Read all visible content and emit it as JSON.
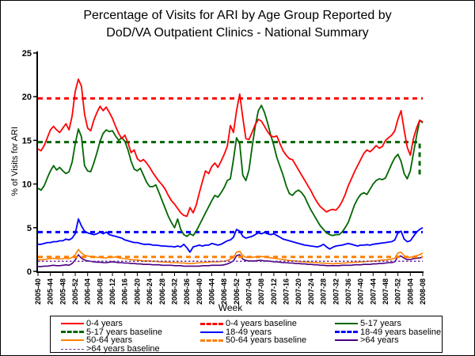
{
  "title": {
    "line1": "Percentage of Visits for ARI by Age Group Reported by",
    "line2": "DoD/VA Outpatient Clinics - National Summary"
  },
  "chart_data": {
    "type": "line",
    "title": "Percentage of Visits for ARI by Age Group Reported by DoD/VA Outpatient Clinics - National Summary",
    "xlabel": "Week",
    "ylabel": "% of Visits for ARI",
    "ylim": [
      0,
      25
    ],
    "yticks": [
      0,
      5,
      10,
      15,
      20,
      25
    ],
    "grid": false,
    "legend_position": "bottom",
    "weeks_total": 125,
    "x_tick_interval_weeks": 4,
    "x_tick_labels": [
      "2005-40",
      "2005-44",
      "2005-48",
      "2005-52",
      "2006-04",
      "2006-08",
      "2006-12",
      "2006-16",
      "2006-20",
      "2006-24",
      "2006-28",
      "2006-32",
      "2006-36",
      "2006-40",
      "2006-44",
      "2006-48",
      "2006-52",
      "2007-04",
      "2007-08",
      "2007-12",
      "2007-16",
      "2007-20",
      "2007-24",
      "2007-28",
      "2007-32",
      "2007-36",
      "2007-40",
      "2007-44",
      "2007-48",
      "2007-52",
      "2008-04",
      "2008-08"
    ],
    "series": [
      {
        "name": "0-4 years",
        "color": "#FF0000",
        "width": 1.8,
        "values": [
          14.0,
          13.8,
          14.4,
          15.3,
          16.2,
          16.6,
          16.2,
          15.9,
          16.4,
          16.9,
          16.2,
          17.8,
          20.6,
          22.0,
          21.2,
          18.0,
          16.4,
          16.1,
          17.3,
          18.2,
          18.9,
          18.4,
          18.8,
          18.2,
          17.5,
          16.6,
          15.8,
          15.2,
          15.6,
          14.7,
          13.6,
          13.9,
          12.9,
          12.6,
          12.8,
          12.4,
          11.9,
          11.3,
          10.8,
          10.3,
          9.9,
          9.4,
          8.7,
          8.1,
          7.7,
          7.2,
          6.7,
          6.4,
          6.3,
          7.3,
          6.7,
          7.6,
          9.0,
          10.3,
          11.5,
          11.2,
          12.0,
          12.4,
          11.9,
          12.6,
          13.4,
          14.3,
          16.7,
          15.9,
          18.4,
          20.3,
          17.6,
          15.2,
          15.1,
          15.9,
          16.8,
          17.4,
          17.2,
          16.6,
          16.0,
          15.5,
          15.4,
          15.5,
          14.6,
          13.8,
          13.3,
          12.9,
          12.8,
          12.2,
          11.6,
          11.0,
          10.4,
          9.8,
          9.2,
          8.5,
          7.9,
          7.4,
          7.1,
          6.8,
          7.0,
          7.1,
          7.0,
          7.4,
          8.0,
          8.8,
          9.8,
          10.6,
          11.4,
          12.1,
          12.8,
          13.5,
          13.9,
          13.7,
          14.0,
          14.4,
          14.1,
          14.3,
          15.0,
          15.3,
          15.6,
          16.1,
          17.4,
          18.4,
          16.2,
          14.2,
          13.3,
          15.2,
          16.4,
          17.3,
          17.1
        ]
      },
      {
        "name": "5-17 years",
        "color": "#006600",
        "width": 1.8,
        "values": [
          9.5,
          9.3,
          9.8,
          10.7,
          11.5,
          12.1,
          11.6,
          11.9,
          11.5,
          11.2,
          11.4,
          12.5,
          14.6,
          16.3,
          15.4,
          12.1,
          11.5,
          11.4,
          12.4,
          13.6,
          14.9,
          15.8,
          16.2,
          16.0,
          16.1,
          15.5,
          15.0,
          15.3,
          14.9,
          13.9,
          12.6,
          11.7,
          11.5,
          11.8,
          11.0,
          10.2,
          9.7,
          9.7,
          9.9,
          9.0,
          8.1,
          7.2,
          6.3,
          5.6,
          5.0,
          6.0,
          4.8,
          4.2,
          4.0,
          4.3,
          4.1,
          4.6,
          5.3,
          6.0,
          6.7,
          7.4,
          8.1,
          8.7,
          8.5,
          9.0,
          9.6,
          10.4,
          10.6,
          12.8,
          15.3,
          14.6,
          11.0,
          10.4,
          11.6,
          14.2,
          16.6,
          18.4,
          19.0,
          18.2,
          17.0,
          15.6,
          14.4,
          13.0,
          12.0,
          11.0,
          9.8,
          8.9,
          8.7,
          9.1,
          9.3,
          9.0,
          8.5,
          7.7,
          7.0,
          6.4,
          5.8,
          5.2,
          4.8,
          4.4,
          4.2,
          4.1,
          4.2,
          4.2,
          4.5,
          5.0,
          5.6,
          6.6,
          7.6,
          8.3,
          8.8,
          9.0,
          8.8,
          9.4,
          10.0,
          10.4,
          10.6,
          10.5,
          10.7,
          11.5,
          12.3,
          13.0,
          13.4,
          12.6,
          11.2,
          10.6,
          11.5,
          13.5,
          15.5,
          17.3,
          17.0
        ]
      },
      {
        "name": "18-49 years",
        "color": "#0000FF",
        "width": 1.8,
        "values": [
          3.1,
          3.1,
          3.2,
          3.3,
          3.3,
          3.4,
          3.4,
          3.5,
          3.5,
          3.7,
          3.6,
          3.8,
          4.3,
          6.0,
          5.2,
          4.6,
          4.4,
          4.3,
          4.2,
          4.3,
          4.5,
          4.3,
          4.5,
          4.2,
          4.1,
          4.0,
          3.9,
          3.8,
          3.6,
          3.5,
          3.4,
          3.3,
          3.3,
          3.2,
          3.1,
          3.1,
          3.1,
          3.0,
          3.0,
          2.95,
          2.9,
          2.9,
          2.85,
          2.85,
          2.8,
          2.9,
          2.8,
          3.1,
          2.7,
          2.2,
          2.8,
          2.9,
          3.0,
          2.9,
          3.0,
          3.0,
          3.2,
          3.1,
          3.0,
          3.1,
          3.3,
          3.5,
          3.6,
          3.9,
          4.8,
          4.6,
          4.0,
          3.8,
          3.9,
          4.0,
          4.2,
          4.4,
          4.3,
          4.45,
          4.3,
          4.2,
          4.3,
          4.1,
          3.9,
          3.7,
          3.6,
          3.5,
          3.4,
          3.3,
          3.2,
          3.1,
          3.0,
          2.95,
          2.9,
          2.85,
          2.8,
          2.9,
          3.1,
          2.8,
          2.55,
          2.75,
          2.9,
          2.95,
          3.0,
          3.1,
          3.2,
          3.1,
          3.0,
          2.9,
          3.0,
          3.0,
          3.05,
          3.0,
          3.1,
          3.15,
          3.2,
          3.25,
          3.3,
          3.35,
          3.4,
          3.6,
          4.4,
          4.6,
          3.7,
          3.4,
          3.5,
          4.0,
          4.5,
          4.8,
          5.0
        ]
      },
      {
        "name": "50-64 years",
        "color": "#FF8000",
        "width": 1.6,
        "values": [
          1.35,
          1.3,
          1.35,
          1.4,
          1.45,
          1.5,
          1.45,
          1.4,
          1.45,
          1.5,
          1.45,
          1.6,
          1.9,
          2.5,
          2.1,
          1.85,
          1.75,
          1.7,
          1.65,
          1.6,
          1.6,
          1.55,
          1.55,
          1.6,
          1.6,
          1.65,
          1.55,
          1.5,
          1.45,
          1.4,
          1.35,
          1.3,
          1.3,
          1.25,
          1.2,
          1.2,
          1.2,
          1.15,
          1.15,
          1.1,
          1.1,
          1.05,
          1.05,
          1.0,
          1.0,
          1.0,
          0.95,
          0.95,
          0.9,
          0.9,
          0.9,
          0.95,
          1.0,
          1.0,
          1.05,
          1.05,
          1.1,
          1.1,
          1.1,
          1.15,
          1.15,
          1.25,
          1.4,
          1.6,
          2.2,
          2.3,
          1.8,
          1.6,
          1.6,
          1.6,
          1.65,
          1.7,
          1.7,
          1.65,
          1.6,
          1.55,
          1.5,
          1.45,
          1.4,
          1.35,
          1.3,
          1.25,
          1.2,
          1.2,
          1.15,
          1.1,
          1.1,
          1.05,
          1.05,
          1.0,
          1.0,
          0.95,
          0.95,
          0.9,
          0.9,
          0.85,
          0.9,
          0.9,
          0.95,
          0.95,
          1.0,
          1.0,
          1.05,
          1.05,
          1.1,
          1.1,
          1.15,
          1.15,
          1.2,
          1.2,
          1.25,
          1.3,
          1.3,
          1.35,
          1.4,
          1.5,
          2.1,
          2.2,
          1.8,
          1.6,
          1.6,
          1.7,
          1.8,
          1.9,
          2.1
        ]
      },
      {
        "name": ">64 years",
        "color": "#4B0082",
        "width": 1.6,
        "values": [
          0.55,
          0.55,
          0.6,
          0.6,
          0.65,
          0.7,
          0.65,
          0.65,
          0.7,
          0.75,
          0.7,
          0.9,
          1.3,
          1.9,
          1.5,
          1.3,
          1.2,
          1.15,
          1.1,
          1.05,
          1.05,
          1.0,
          1.0,
          1.05,
          1.1,
          1.05,
          1.0,
          1.0,
          0.95,
          0.95,
          0.9,
          0.9,
          0.85,
          0.85,
          0.8,
          0.8,
          0.8,
          0.75,
          0.75,
          0.75,
          0.7,
          0.7,
          0.7,
          0.7,
          0.65,
          0.65,
          0.65,
          0.6,
          0.6,
          0.6,
          0.6,
          0.6,
          0.6,
          0.65,
          0.65,
          0.65,
          0.7,
          0.7,
          0.7,
          0.7,
          0.75,
          0.85,
          1.0,
          1.2,
          1.8,
          1.9,
          1.4,
          1.25,
          1.2,
          1.2,
          1.2,
          1.25,
          1.25,
          1.2,
          1.2,
          1.15,
          1.1,
          1.1,
          1.05,
          1.0,
          1.0,
          0.95,
          0.95,
          0.9,
          0.9,
          0.85,
          0.85,
          0.8,
          0.8,
          0.75,
          0.75,
          0.7,
          0.7,
          0.65,
          0.65,
          0.65,
          0.65,
          0.65,
          0.7,
          0.7,
          0.7,
          0.7,
          0.75,
          0.75,
          0.75,
          0.8,
          0.8,
          0.8,
          0.85,
          0.85,
          0.9,
          0.9,
          0.95,
          1.0,
          1.0,
          1.1,
          1.7,
          1.75,
          1.5,
          1.35,
          1.35,
          1.45,
          1.5,
          1.55,
          1.6
        ]
      }
    ],
    "baselines": [
      {
        "name": "0-4 years baseline",
        "color": "#FF0000",
        "value": 19.8,
        "dash": "heavy"
      },
      {
        "name": "5-17 years baseline",
        "color": "#006600",
        "value": 14.8,
        "dash": "heavy",
        "end_drop": {
          "week_index": 123,
          "drop_to": 11.0
        }
      },
      {
        "name": "18-49 years baseline",
        "color": "#0000FF",
        "value": 4.5,
        "dash": "heavy"
      },
      {
        "name": "50-64 years baseline",
        "color": "#FF8000",
        "value": 1.65,
        "dash": "heavy"
      },
      {
        "name": ">64 years baseline",
        "color": "#7030A0",
        "value": 1.15,
        "dash": "fine"
      }
    ],
    "legend_order": [
      "0-4 years",
      "0-4 years baseline",
      "5-17 years",
      "5-17 years baseline",
      "18-49 years",
      "18-49 years baseline",
      "50-64 years",
      "50-64 years baseline",
      ">64 years",
      ">64 years baseline"
    ]
  }
}
